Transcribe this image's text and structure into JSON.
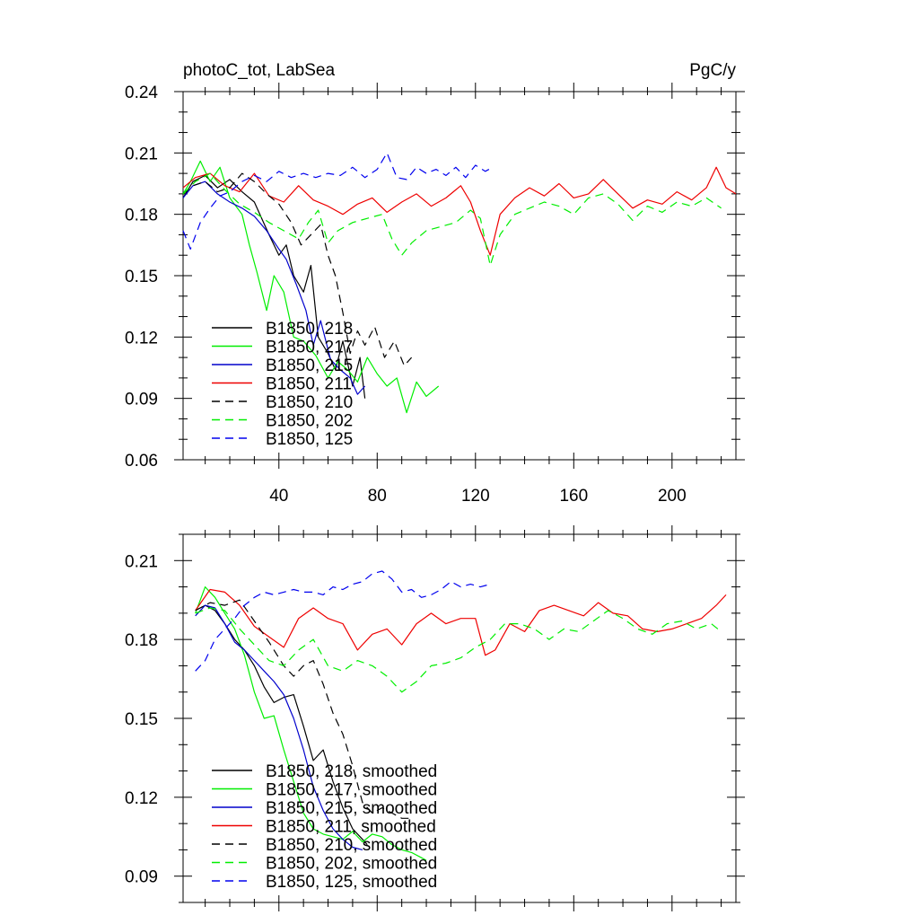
{
  "figure_title": "photoC_tot, LabSea",
  "units": "PgC/y",
  "chart_data": [
    {
      "type": "line",
      "panel": "top",
      "title_left": "photoC_tot, LabSea",
      "title_right": "PgC/y",
      "xlim": [
        1,
        226
      ],
      "ylim": [
        0.06,
        0.24
      ],
      "xticks": [
        40,
        80,
        120,
        160,
        200
      ],
      "xtick_labels": [
        "40",
        "80",
        "120",
        "160",
        "200"
      ],
      "yticks": [
        0.06,
        0.09,
        0.12,
        0.15,
        0.18,
        0.21,
        0.24
      ],
      "ytick_labels": [
        "0.06",
        "0.09",
        "0.12",
        "0.15",
        "0.18",
        "0.21",
        "0.24"
      ],
      "legend_position": "lower-left",
      "series": [
        {
          "name": "B1850, 218",
          "color": "#000000",
          "dash": "solid",
          "x": [
            1,
            5,
            10,
            15,
            20,
            25,
            30,
            33,
            36,
            40,
            43,
            46,
            50,
            53,
            56,
            60,
            63,
            66,
            70,
            73,
            75
          ],
          "y": [
            0.188,
            0.196,
            0.199,
            0.193,
            0.197,
            0.191,
            0.186,
            0.178,
            0.17,
            0.16,
            0.165,
            0.15,
            0.142,
            0.155,
            0.12,
            0.112,
            0.104,
            0.118,
            0.096,
            0.11,
            0.09
          ]
        },
        {
          "name": "B1850, 217",
          "color": "#00ee00",
          "dash": "solid",
          "x": [
            1,
            4,
            8,
            12,
            16,
            20,
            25,
            28,
            31,
            35,
            38,
            42,
            46,
            50,
            55,
            60,
            64,
            68,
            72,
            76,
            80,
            84,
            88,
            92,
            96,
            100,
            105
          ],
          "y": [
            0.19,
            0.196,
            0.206,
            0.196,
            0.203,
            0.188,
            0.18,
            0.165,
            0.152,
            0.133,
            0.15,
            0.142,
            0.12,
            0.118,
            0.111,
            0.1,
            0.108,
            0.104,
            0.098,
            0.11,
            0.102,
            0.096,
            0.1,
            0.083,
            0.098,
            0.091,
            0.096
          ]
        },
        {
          "name": "B1850, 215",
          "color": "#0000cc",
          "dash": "solid",
          "x": [
            1,
            5,
            10,
            15,
            20,
            25,
            30,
            35,
            40,
            43,
            47,
            51,
            54,
            57,
            61,
            65,
            69,
            72,
            75
          ],
          "y": [
            0.188,
            0.194,
            0.196,
            0.19,
            0.186,
            0.183,
            0.179,
            0.172,
            0.163,
            0.158,
            0.146,
            0.133,
            0.116,
            0.128,
            0.109,
            0.104,
            0.1,
            0.092,
            0.096
          ]
        },
        {
          "name": "B1850, 211",
          "color": "#ee0000",
          "dash": "solid",
          "x": [
            1,
            6,
            12,
            18,
            24,
            30,
            36,
            42,
            48,
            54,
            60,
            66,
            72,
            78,
            84,
            90,
            96,
            102,
            108,
            114,
            118,
            122,
            126,
            130,
            136,
            142,
            148,
            154,
            160,
            166,
            172,
            178,
            184,
            190,
            196,
            202,
            208,
            214,
            218,
            222,
            226
          ],
          "y": [
            0.193,
            0.198,
            0.2,
            0.194,
            0.191,
            0.2,
            0.189,
            0.186,
            0.194,
            0.187,
            0.184,
            0.18,
            0.185,
            0.188,
            0.181,
            0.186,
            0.19,
            0.184,
            0.188,
            0.194,
            0.186,
            0.172,
            0.16,
            0.18,
            0.188,
            0.193,
            0.189,
            0.195,
            0.188,
            0.19,
            0.197,
            0.19,
            0.183,
            0.187,
            0.185,
            0.191,
            0.187,
            0.193,
            0.203,
            0.193,
            0.19
          ]
        },
        {
          "name": "B1850, 210",
          "color": "#000000",
          "dash": "dashed",
          "x": [
            1,
            5,
            10,
            15,
            20,
            25,
            30,
            35,
            40,
            45,
            49,
            53,
            57,
            60,
            63,
            66,
            69,
            72,
            75,
            79,
            83,
            87,
            91,
            94
          ],
          "y": [
            0.19,
            0.194,
            0.196,
            0.191,
            0.193,
            0.2,
            0.196,
            0.19,
            0.185,
            0.176,
            0.165,
            0.17,
            0.175,
            0.16,
            0.15,
            0.132,
            0.112,
            0.123,
            0.116,
            0.125,
            0.11,
            0.118,
            0.106,
            0.11
          ]
        },
        {
          "name": "B1850, 202",
          "color": "#00ee00",
          "dash": "dashed",
          "x": [
            1,
            6,
            12,
            18,
            24,
            30,
            36,
            42,
            48,
            52,
            56,
            60,
            64,
            70,
            76,
            82,
            86,
            90,
            94,
            100,
            106,
            112,
            118,
            122,
            126,
            130,
            136,
            142,
            148,
            154,
            160,
            166,
            172,
            178,
            184,
            190,
            196,
            202,
            208,
            214,
            220
          ],
          "y": [
            0.19,
            0.196,
            0.2,
            0.192,
            0.185,
            0.181,
            0.176,
            0.172,
            0.168,
            0.176,
            0.182,
            0.166,
            0.172,
            0.176,
            0.178,
            0.18,
            0.168,
            0.16,
            0.166,
            0.172,
            0.174,
            0.176,
            0.182,
            0.178,
            0.155,
            0.17,
            0.18,
            0.183,
            0.186,
            0.184,
            0.18,
            0.188,
            0.19,
            0.185,
            0.177,
            0.184,
            0.181,
            0.186,
            0.184,
            0.188,
            0.183
          ]
        },
        {
          "name": "B1850, 125",
          "color": "#0000ee",
          "dash": "dashed",
          "x": [
            1,
            4,
            8,
            12,
            16,
            20,
            25,
            30,
            35,
            40,
            45,
            50,
            55,
            60,
            65,
            70,
            75,
            80,
            84,
            88,
            92,
            96,
            100,
            104,
            108,
            112,
            116,
            120,
            124,
            127
          ],
          "y": [
            0.172,
            0.163,
            0.176,
            0.183,
            0.189,
            0.191,
            0.196,
            0.199,
            0.196,
            0.201,
            0.198,
            0.2,
            0.198,
            0.2,
            0.199,
            0.203,
            0.198,
            0.202,
            0.21,
            0.198,
            0.197,
            0.203,
            0.2,
            0.202,
            0.199,
            0.203,
            0.198,
            0.204,
            0.201,
            0.203
          ]
        }
      ]
    },
    {
      "type": "line",
      "panel": "bottom",
      "xlim": [
        1,
        226
      ],
      "ylim": [
        0.08,
        0.22
      ],
      "yticks": [
        0.09,
        0.12,
        0.15,
        0.18,
        0.21
      ],
      "ytick_labels": [
        "0.09",
        "0.12",
        "0.15",
        "0.18",
        "0.21"
      ],
      "legend_position": "lower-left",
      "series": [
        {
          "name": "B1850, 218, smoothed",
          "color": "#000000",
          "dash": "solid",
          "x": [
            6,
            10,
            14,
            18,
            22,
            26,
            30,
            34,
            38,
            42,
            46,
            50,
            54,
            58,
            62,
            66,
            70,
            74,
            76
          ],
          "y": [
            0.191,
            0.193,
            0.191,
            0.186,
            0.18,
            0.176,
            0.17,
            0.162,
            0.156,
            0.158,
            0.159,
            0.147,
            0.134,
            0.138,
            0.126,
            0.116,
            0.108,
            0.104,
            0.102
          ]
        },
        {
          "name": "B1850, 217, smoothed",
          "color": "#00ee00",
          "dash": "solid",
          "x": [
            6,
            10,
            14,
            18,
            22,
            26,
            30,
            34,
            38,
            42,
            46,
            50,
            54,
            58,
            62,
            66,
            70,
            74,
            78,
            82,
            86,
            90,
            94,
            98,
            100
          ],
          "y": [
            0.19,
            0.2,
            0.196,
            0.19,
            0.184,
            0.174,
            0.16,
            0.15,
            0.151,
            0.138,
            0.126,
            0.114,
            0.108,
            0.106,
            0.105,
            0.104,
            0.107,
            0.103,
            0.106,
            0.105,
            0.102,
            0.1,
            0.099,
            0.097,
            0.096
          ]
        },
        {
          "name": "B1850, 215, smoothed",
          "color": "#0000cc",
          "dash": "solid",
          "x": [
            6,
            10,
            14,
            18,
            22,
            26,
            30,
            34,
            38,
            42,
            46,
            50,
            54,
            58,
            62,
            66,
            70,
            74
          ],
          "y": [
            0.189,
            0.193,
            0.192,
            0.186,
            0.179,
            0.176,
            0.172,
            0.168,
            0.164,
            0.159,
            0.15,
            0.138,
            0.124,
            0.115,
            0.108,
            0.104,
            0.101,
            0.1
          ]
        },
        {
          "name": "B1850, 211, smoothed",
          "color": "#ee0000",
          "dash": "solid",
          "x": [
            6,
            12,
            18,
            24,
            30,
            36,
            42,
            48,
            54,
            60,
            66,
            72,
            78,
            84,
            90,
            96,
            102,
            108,
            114,
            120,
            124,
            128,
            134,
            140,
            146,
            152,
            158,
            164,
            170,
            176,
            182,
            188,
            194,
            200,
            206,
            212,
            218,
            222
          ],
          "y": [
            0.191,
            0.199,
            0.198,
            0.193,
            0.185,
            0.181,
            0.177,
            0.188,
            0.192,
            0.188,
            0.186,
            0.176,
            0.182,
            0.184,
            0.178,
            0.186,
            0.19,
            0.186,
            0.188,
            0.188,
            0.174,
            0.176,
            0.186,
            0.183,
            0.191,
            0.193,
            0.191,
            0.189,
            0.194,
            0.19,
            0.189,
            0.184,
            0.183,
            0.184,
            0.186,
            0.188,
            0.193,
            0.197
          ]
        },
        {
          "name": "B1850, 210, smoothed",
          "color": "#000000",
          "dash": "dashed",
          "x": [
            6,
            12,
            18,
            24,
            30,
            36,
            42,
            46,
            50,
            54,
            58,
            62,
            66,
            70,
            74,
            78,
            82,
            86,
            90,
            93
          ],
          "y": [
            0.191,
            0.194,
            0.193,
            0.195,
            0.187,
            0.179,
            0.17,
            0.166,
            0.17,
            0.172,
            0.163,
            0.152,
            0.144,
            0.132,
            0.118,
            0.114,
            0.116,
            0.114,
            0.112,
            0.112
          ]
        },
        {
          "name": "B1850, 202, smoothed",
          "color": "#00ee00",
          "dash": "dashed",
          "x": [
            6,
            12,
            18,
            24,
            30,
            36,
            42,
            48,
            54,
            60,
            66,
            72,
            78,
            84,
            90,
            96,
            102,
            108,
            114,
            120,
            126,
            132,
            138,
            144,
            150,
            156,
            162,
            168,
            174,
            180,
            186,
            192,
            198,
            204,
            210,
            216,
            220
          ],
          "y": [
            0.19,
            0.192,
            0.191,
            0.184,
            0.178,
            0.172,
            0.17,
            0.176,
            0.18,
            0.17,
            0.168,
            0.172,
            0.17,
            0.166,
            0.16,
            0.164,
            0.17,
            0.171,
            0.173,
            0.177,
            0.18,
            0.186,
            0.186,
            0.184,
            0.18,
            0.184,
            0.183,
            0.187,
            0.191,
            0.188,
            0.184,
            0.182,
            0.186,
            0.187,
            0.184,
            0.186,
            0.183
          ]
        },
        {
          "name": "B1850, 125, smoothed",
          "color": "#0000ee",
          "dash": "dashed",
          "x": [
            6,
            10,
            14,
            18,
            22,
            26,
            30,
            34,
            38,
            42,
            46,
            50,
            54,
            58,
            62,
            66,
            70,
            74,
            78,
            82,
            86,
            90,
            94,
            98,
            102,
            106,
            110,
            114,
            118,
            122,
            126
          ],
          "y": [
            0.168,
            0.172,
            0.18,
            0.184,
            0.188,
            0.193,
            0.196,
            0.198,
            0.197,
            0.198,
            0.199,
            0.198,
            0.198,
            0.197,
            0.2,
            0.199,
            0.201,
            0.202,
            0.205,
            0.206,
            0.203,
            0.198,
            0.199,
            0.196,
            0.197,
            0.199,
            0.202,
            0.2,
            0.201,
            0.2,
            0.201
          ]
        }
      ]
    }
  ]
}
